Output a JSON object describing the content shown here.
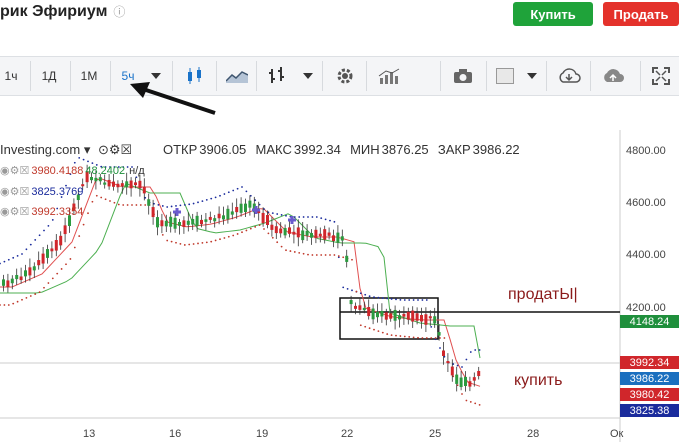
{
  "header": {
    "title": "рик Эфириум",
    "info_icon": "info-circle-icon",
    "buy_label": "Купить",
    "sell_label": "Продать"
  },
  "toolbar": {
    "timeframes": [
      "1ч",
      "1Д",
      "1М",
      "5ч"
    ],
    "active_timeframe": "5ч",
    "icons": [
      "dropdown-caret-icon",
      "candlestick-icon",
      "area-chart-icon",
      "bar-chart-icon",
      "dropdown-caret-icon",
      "gear-icon",
      "indicators-icon",
      "camera-icon",
      "color-square-icon",
      "dropdown-caret-icon",
      "cloud-download-icon",
      "cloud-upload-icon",
      "fullscreen-icon"
    ]
  },
  "legend": {
    "symbol": "Investing.com",
    "open_label": "ОТКР",
    "open": "3906.05",
    "high_label": "МАКС",
    "high": "3992.34",
    "low_label": "МИН",
    "low": "3876.25",
    "close_label": "ЗАКР",
    "close": "3986.22",
    "indicators": [
      {
        "value": "3980.4188",
        "extra": "48.2402",
        "suffix": "н/д",
        "color": "#c0392b"
      },
      {
        "value": "3825.3769",
        "extra": "",
        "suffix": "",
        "color": "#1a2b9c"
      },
      {
        "value": "3992.3354",
        "extra": "",
        "suffix": "",
        "color": "#c0392b"
      }
    ]
  },
  "chart_data": {
    "type": "candlestick",
    "y_ticks": [
      "4800.00",
      "4600.00",
      "4400.00",
      "4200.00"
    ],
    "x_ticks": [
      "13",
      "16",
      "19",
      "22",
      "25",
      "28",
      "Ок"
    ],
    "price_labels": [
      {
        "value": "4148.24",
        "color": "#1f8f3c"
      },
      {
        "value": "3992.34",
        "color": "#d0262b"
      },
      {
        "value": "3986.22",
        "color": "#1a6fbf"
      },
      {
        "value": "3980.42",
        "color": "#d0262b"
      },
      {
        "value": "3825.38",
        "color": "#1a2b9c"
      }
    ],
    "annotations": [
      {
        "text": "продатЫ|",
        "color": "#8b1b1b"
      },
      {
        "text": "купить",
        "color": "#8b1b1b"
      }
    ]
  }
}
